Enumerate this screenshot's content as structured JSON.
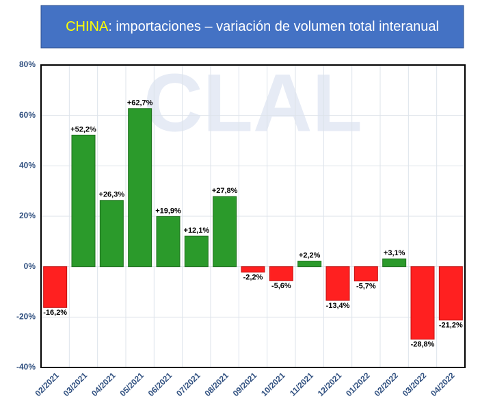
{
  "chart_data": {
    "type": "bar",
    "title_highlight": "CHINA",
    "title": ": importaciones – variación de volumen total interanual",
    "watermark": "CLAL",
    "categories": [
      "02/2021",
      "03/2021",
      "04/2021",
      "05/2021",
      "06/2021",
      "07/2021",
      "08/2021",
      "09/2021",
      "10/2021",
      "11/2021",
      "12/2021",
      "01/2022",
      "02/2022",
      "03/2022",
      "04/2022"
    ],
    "values": [
      -16.2,
      52.2,
      26.3,
      62.7,
      19.9,
      12.1,
      27.8,
      -2.2,
      -5.6,
      2.2,
      -13.4,
      -5.7,
      3.1,
      -28.8,
      -21.2
    ],
    "value_labels": [
      "-16,2%",
      "+52,2%",
      "+26,3%",
      "+62,7%",
      "+19,9%",
      "+12,1%",
      "+27,8%",
      "-2,2%",
      "-5,6%",
      "+2,2%",
      "-13,4%",
      "-5,7%",
      "+3,1%",
      "-28,8%",
      "-21,2%"
    ],
    "positive_color": "#2b9a2b",
    "negative_color": "#ff2020",
    "ylim": [
      -40,
      80
    ],
    "yticks": [
      {
        "value": -40,
        "label": "-40%"
      },
      {
        "value": -20,
        "label": "-20%"
      },
      {
        "value": 0,
        "label": "0%"
      },
      {
        "value": 20,
        "label": "20%"
      },
      {
        "value": 40,
        "label": "40%"
      },
      {
        "value": 60,
        "label": "60%"
      },
      {
        "value": 80,
        "label": "80%"
      }
    ],
    "grid": true
  }
}
